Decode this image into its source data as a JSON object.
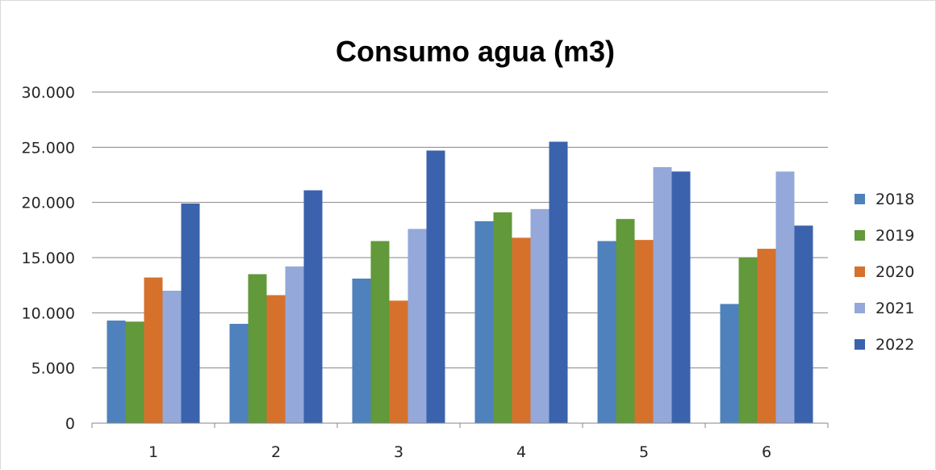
{
  "chart_data": {
    "type": "bar",
    "title": "Consumo agua (m3)",
    "xlabel": "",
    "ylabel": "",
    "categories": [
      "1",
      "2",
      "3",
      "4",
      "5",
      "6"
    ],
    "ylim": [
      0,
      30000
    ],
    "yticks": [
      0,
      5000,
      10000,
      15000,
      20000,
      25000,
      30000
    ],
    "ytick_labels": [
      "0",
      "5.000",
      "10.000",
      "15.000",
      "20.000",
      "25.000",
      "30.000"
    ],
    "grid": true,
    "legend_position": "right",
    "series": [
      {
        "name": "2018",
        "color": "#4f81bd",
        "values": [
          9300,
          9000,
          13100,
          18300,
          16500,
          10800
        ]
      },
      {
        "name": "2019",
        "color": "#61993b",
        "values": [
          9200,
          13500,
          16500,
          19100,
          18500,
          15000
        ]
      },
      {
        "name": "2020",
        "color": "#d6712c",
        "values": [
          13200,
          11600,
          11100,
          16800,
          16600,
          15800
        ]
      },
      {
        "name": "2021",
        "color": "#94a8d9",
        "values": [
          12000,
          14200,
          17600,
          19400,
          23200,
          22800
        ]
      },
      {
        "name": "2022",
        "color": "#3a62ad",
        "values": [
          19900,
          21100,
          24700,
          25500,
          22800,
          17900
        ]
      }
    ]
  }
}
